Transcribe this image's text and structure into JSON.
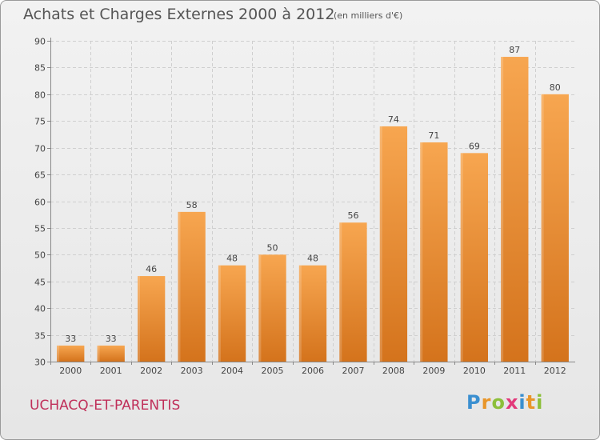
{
  "chart_data": {
    "type": "bar",
    "title": "Achats et Charges Externes 2000 à 2012",
    "subtitle": "(en milliers d'€)",
    "categories": [
      "2000",
      "2001",
      "2002",
      "2003",
      "2004",
      "2005",
      "2006",
      "2007",
      "2008",
      "2009",
      "2010",
      "2011",
      "2012"
    ],
    "values": [
      33,
      33,
      46,
      58,
      48,
      50,
      48,
      56,
      74,
      71,
      69,
      87,
      80
    ],
    "ylim": [
      30,
      90
    ],
    "yticks": [
      30,
      35,
      40,
      45,
      50,
      55,
      60,
      65,
      70,
      75,
      80,
      85,
      90
    ],
    "xlabel": "",
    "ylabel": "",
    "grid": true
  },
  "place_name": "UCHACQ-ET-PARENTIS",
  "brand": {
    "letters": [
      "P",
      "r",
      "o",
      "x",
      "i",
      "t",
      "i"
    ],
    "colors": [
      "#3a8fd0",
      "#e8962a",
      "#8cbf3a",
      "#e23a7a",
      "#3a8fd0",
      "#e8962a",
      "#8cbf3a"
    ]
  },
  "colors": {
    "bar_light": "#f7a650",
    "bar_dark": "#d4731c",
    "grid": "#cfcfcf",
    "axis": "#888888"
  }
}
